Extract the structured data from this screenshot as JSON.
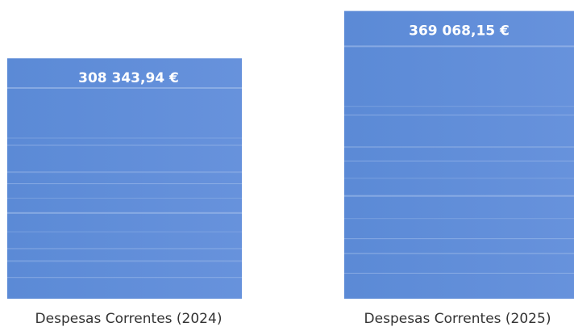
{
  "chart_data": {
    "type": "bar",
    "categories": [
      "Despesas Correntes (2024)",
      "Despesas Correntes (2025)"
    ],
    "values": [
      308343.94,
      369068.15
    ],
    "data_labels": [
      "308 343,94 €",
      "369 068,15 €"
    ],
    "bar_color": "#5b8ad6",
    "stripe_color": "#a9c2ec",
    "grid": false,
    "legend": "none"
  }
}
